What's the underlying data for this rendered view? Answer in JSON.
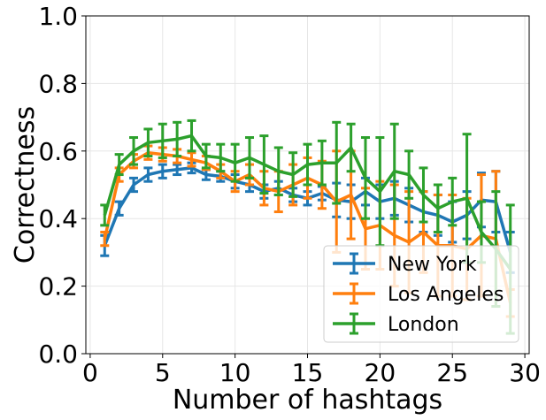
{
  "chart_data": {
    "type": "line",
    "xlabel": "Number of hashtags",
    "ylabel": "Correctness",
    "xlim": [
      -0.3,
      30.3
    ],
    "ylim": [
      0.0,
      1.0
    ],
    "x_ticks": [
      0,
      5,
      10,
      15,
      20,
      25,
      30
    ],
    "y_ticks": [
      0.0,
      0.2,
      0.4,
      0.6,
      0.8,
      1.0
    ],
    "x_tick_labels": [
      "0",
      "5",
      "10",
      "15",
      "20",
      "25",
      "30"
    ],
    "y_tick_labels": [
      "0.0",
      "0.2",
      "0.4",
      "0.6",
      "0.8",
      "1.0"
    ],
    "grid": true,
    "legend_position": "bottom-right",
    "error_bars": true,
    "x": [
      1,
      2,
      3,
      4,
      5,
      6,
      7,
      8,
      9,
      10,
      11,
      12,
      13,
      14,
      15,
      16,
      17,
      18,
      19,
      20,
      21,
      22,
      23,
      24,
      25,
      26,
      27,
      28,
      29
    ],
    "series": [
      {
        "name": "New York",
        "color": "#1f77b4",
        "values": [
          0.32,
          0.43,
          0.5,
          0.53,
          0.54,
          0.545,
          0.55,
          0.53,
          0.525,
          0.51,
          0.5,
          0.48,
          0.49,
          0.47,
          0.46,
          0.475,
          0.455,
          0.45,
          0.48,
          0.45,
          0.46,
          0.44,
          0.42,
          0.41,
          0.39,
          0.41,
          0.455,
          0.45,
          0.3
        ],
        "err": [
          0.03,
          0.02,
          0.02,
          0.02,
          0.02,
          0.015,
          0.015,
          0.015,
          0.015,
          0.02,
          0.02,
          0.02,
          0.02,
          0.02,
          0.02,
          0.02,
          0.05,
          0.05,
          0.04,
          0.05,
          0.05,
          0.05,
          0.06,
          0.06,
          0.06,
          0.07,
          0.08,
          0.09,
          0.06
        ]
      },
      {
        "name": "Los Angeles",
        "color": "#ff7f0e",
        "values": [
          0.34,
          0.53,
          0.57,
          0.595,
          0.59,
          0.585,
          0.575,
          0.565,
          0.54,
          0.51,
          0.53,
          0.49,
          0.48,
          0.5,
          0.52,
          0.5,
          0.45,
          0.47,
          0.37,
          0.38,
          0.35,
          0.33,
          0.36,
          0.32,
          0.32,
          0.31,
          0.35,
          0.34,
          0.15
        ],
        "err": [
          0.02,
          0.02,
          0.02,
          0.02,
          0.02,
          0.02,
          0.02,
          0.02,
          0.02,
          0.03,
          0.03,
          0.05,
          0.06,
          0.06,
          0.06,
          0.07,
          0.15,
          0.13,
          0.12,
          0.13,
          0.15,
          0.15,
          0.12,
          0.15,
          0.15,
          0.15,
          0.18,
          0.2,
          0.04
        ]
      },
      {
        "name": "London",
        "color": "#2ca02c",
        "values": [
          0.41,
          0.56,
          0.6,
          0.625,
          0.63,
          0.635,
          0.645,
          0.585,
          0.58,
          0.565,
          0.58,
          0.56,
          0.54,
          0.53,
          0.56,
          0.565,
          0.565,
          0.61,
          0.52,
          0.48,
          0.54,
          0.53,
          0.47,
          0.43,
          0.45,
          0.46,
          0.36,
          0.31,
          0.25
        ],
        "err": [
          0.03,
          0.03,
          0.04,
          0.04,
          0.05,
          0.05,
          0.045,
          0.035,
          0.04,
          0.055,
          0.06,
          0.085,
          0.07,
          0.065,
          0.06,
          0.065,
          0.12,
          0.07,
          0.12,
          0.16,
          0.14,
          0.07,
          0.08,
          0.07,
          0.07,
          0.19,
          0.09,
          0.17,
          0.19
        ]
      }
    ]
  }
}
